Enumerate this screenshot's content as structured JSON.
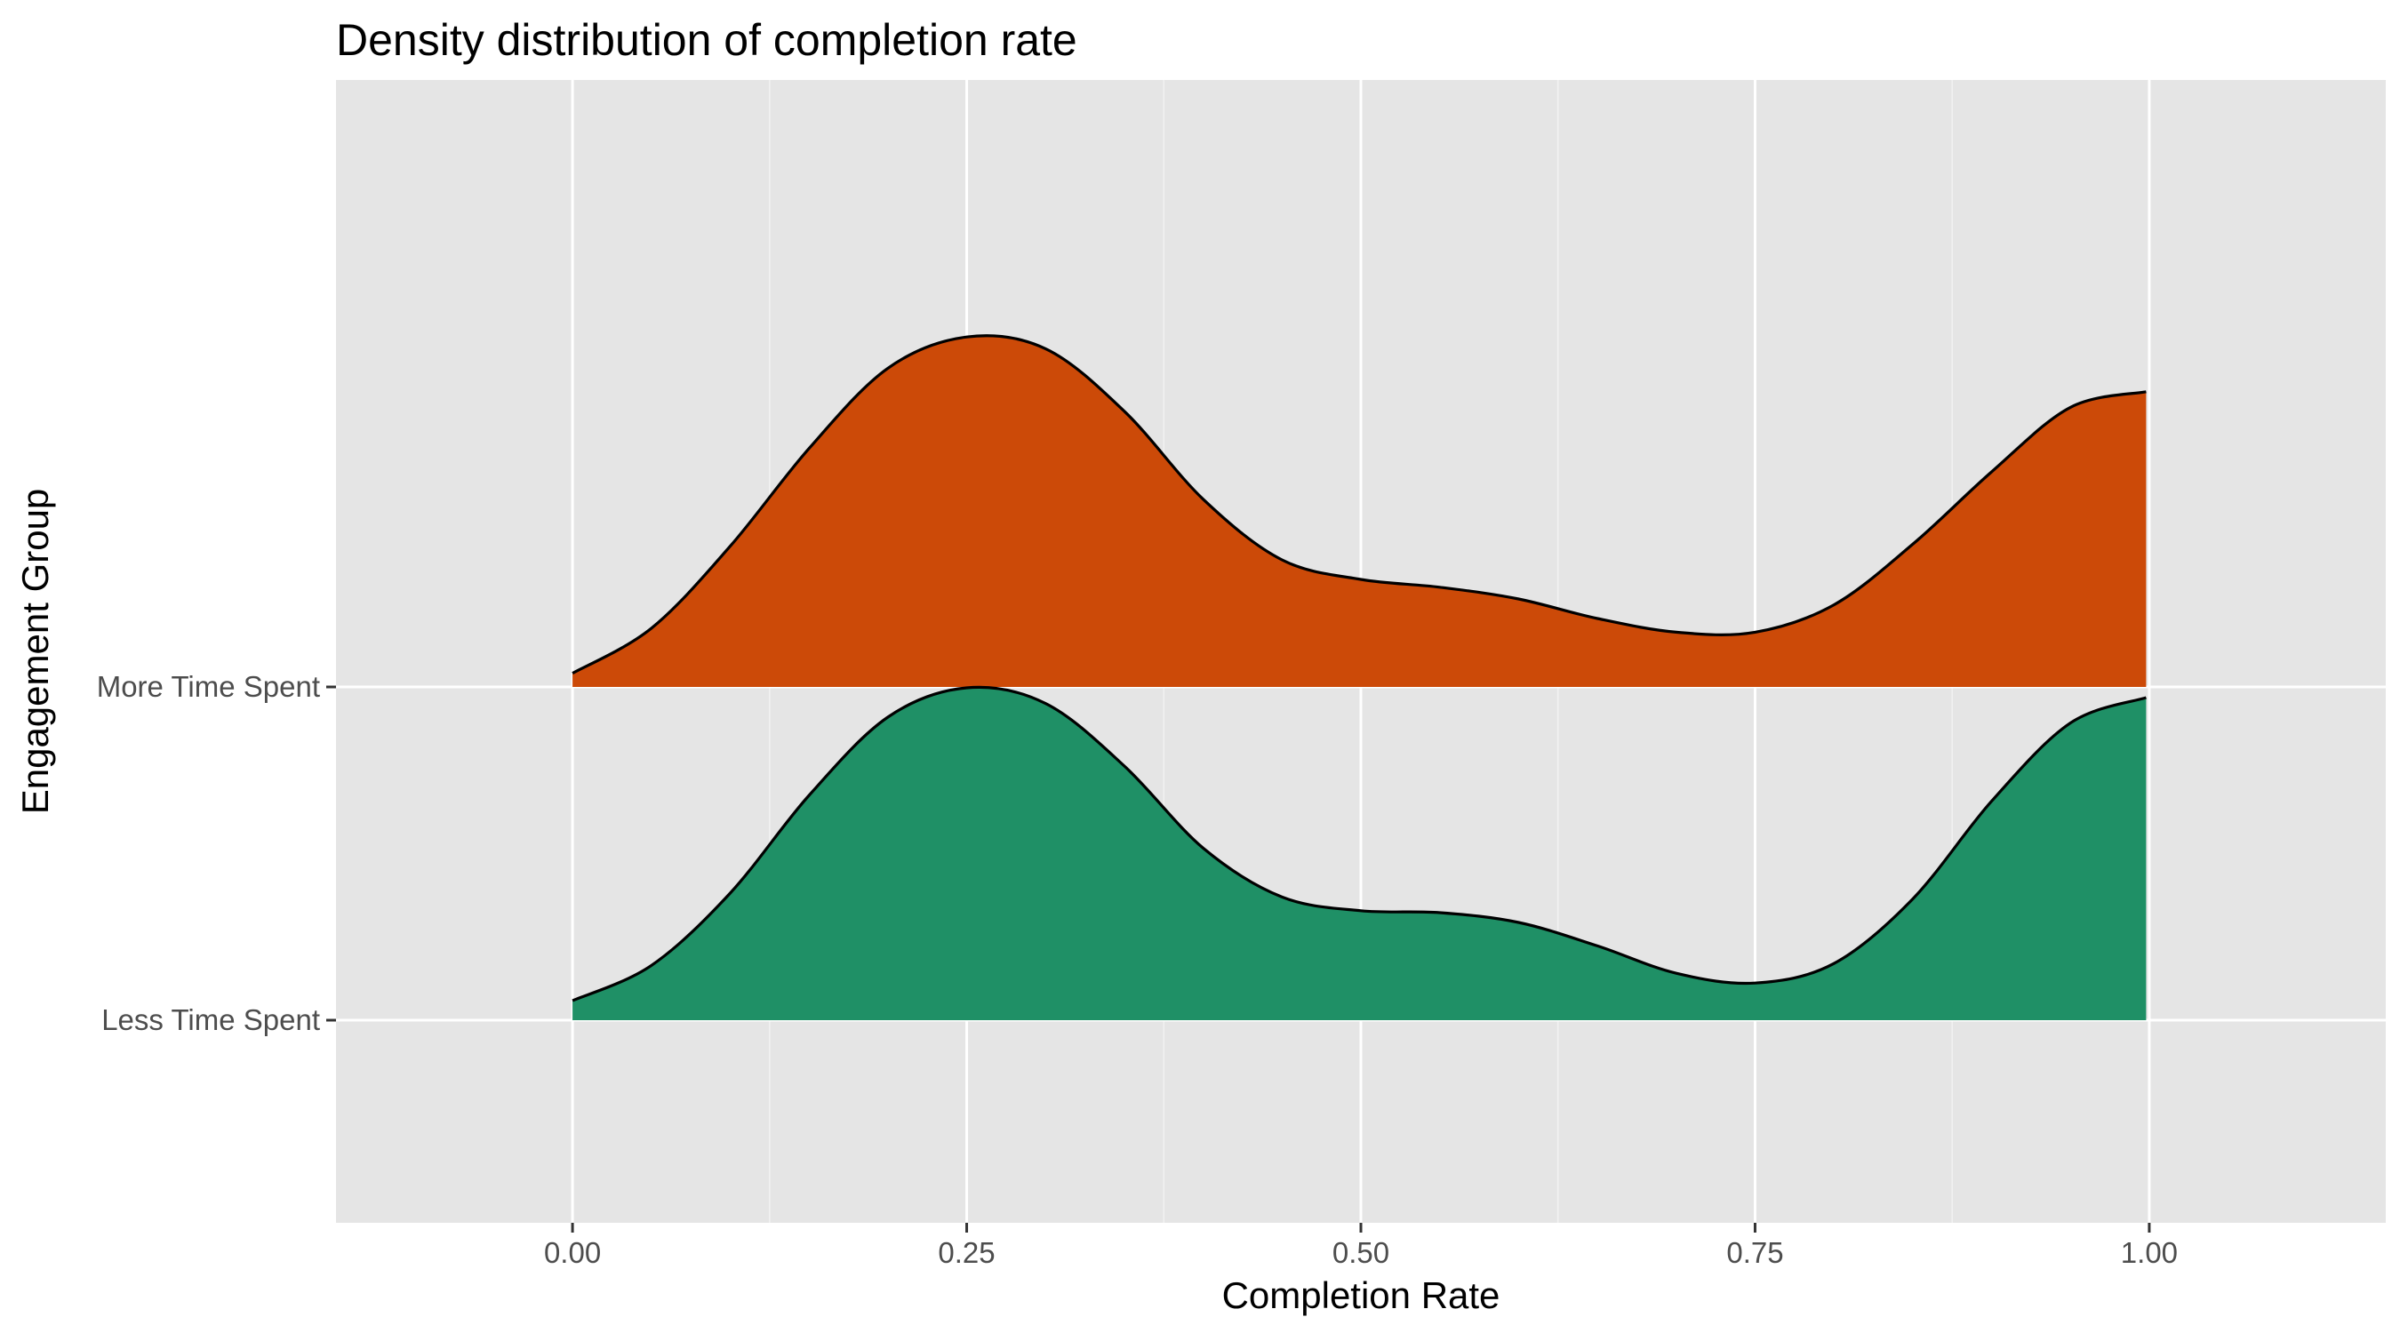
{
  "chart_data": {
    "type": "area",
    "subtype": "ridgeline",
    "title": "Density distribution of completion rate",
    "xlabel": "Completion Rate",
    "ylabel": "Engagement Group",
    "xlim": [
      -0.15,
      1.15
    ],
    "x_ticks": [
      0.0,
      0.25,
      0.5,
      0.75,
      1.0
    ],
    "x_tick_labels": [
      "0.00",
      "0.25",
      "0.50",
      "0.75",
      "1.00"
    ],
    "categories": [
      "Less Time Spent",
      "More Time Spent"
    ],
    "grid": true,
    "legend": "none",
    "series": [
      {
        "name": "Less Time Spent",
        "color": "#1f9066",
        "x": [
          0.0,
          0.05,
          0.1,
          0.15,
          0.2,
          0.25,
          0.3,
          0.35,
          0.4,
          0.45,
          0.5,
          0.55,
          0.6,
          0.65,
          0.7,
          0.75,
          0.8,
          0.85,
          0.9,
          0.95,
          0.998
        ],
        "y": [
          0.1,
          0.28,
          0.65,
          1.15,
          1.55,
          1.7,
          1.62,
          1.3,
          0.88,
          0.63,
          0.56,
          0.55,
          0.5,
          0.38,
          0.24,
          0.19,
          0.29,
          0.62,
          1.12,
          1.52,
          1.65
        ]
      },
      {
        "name": "More Time Spent",
        "color": "#cc4a08",
        "x": [
          0.0,
          0.05,
          0.1,
          0.15,
          0.2,
          0.25,
          0.3,
          0.35,
          0.4,
          0.45,
          0.5,
          0.55,
          0.6,
          0.65,
          0.7,
          0.75,
          0.8,
          0.85,
          0.9,
          0.95,
          0.998
        ],
        "y": [
          0.07,
          0.3,
          0.72,
          1.22,
          1.63,
          1.79,
          1.73,
          1.41,
          0.96,
          0.65,
          0.55,
          0.51,
          0.45,
          0.35,
          0.28,
          0.28,
          0.42,
          0.73,
          1.1,
          1.43,
          1.51
        ]
      }
    ]
  }
}
